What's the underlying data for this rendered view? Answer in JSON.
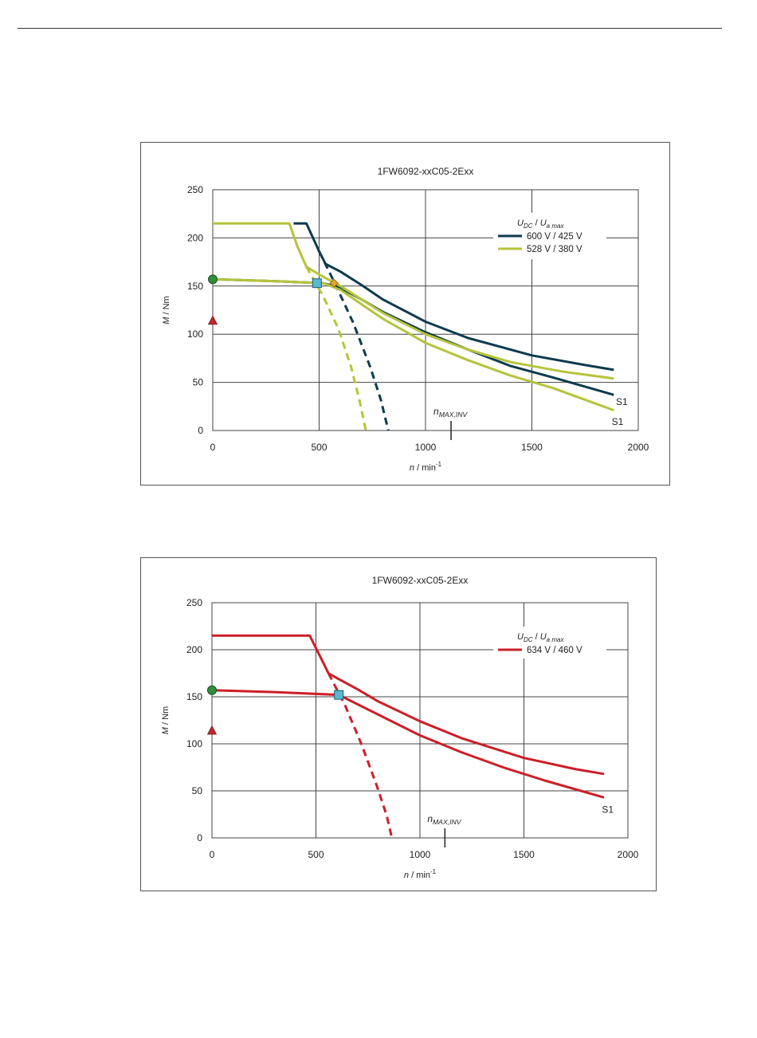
{
  "chart_data": [
    {
      "type": "line",
      "title": "1FW6092-xxC05-2Exx",
      "xlabel_var": "n",
      "xlabel_unit": " / min",
      "xlabel_sup": "-1",
      "ylabel_var": "M",
      "ylabel_unit": " / Nm",
      "xlim": [
        0,
        2000
      ],
      "ylim": [
        0,
        250
      ],
      "xticks": [
        0,
        500,
        1000,
        1500,
        2000
      ],
      "yticks": [
        0,
        50,
        100,
        150,
        200,
        250
      ],
      "grid": true,
      "legend_position": "top-right",
      "legend_header": "U_DC / U_a max",
      "nmax_label": "n_MAX,INV",
      "nmax_value": 1120,
      "series": [
        {
          "name": "600 V / 425 V",
          "color": "#0e3b4e",
          "dash": false,
          "points": [
            [
              380,
              215
            ],
            [
              440,
              215
            ],
            [
              500,
              186
            ],
            [
              530,
              173
            ],
            [
              600,
              165
            ],
            [
              700,
              151
            ],
            [
              800,
              136
            ],
            [
              1000,
              113
            ],
            [
              1200,
              96
            ],
            [
              1500,
              78
            ],
            [
              1750,
              68
            ],
            [
              1885,
              63
            ]
          ]
        },
        {
          "name": "",
          "color": "#0e3b4e",
          "dash": false,
          "points": [
            [
              0,
              157
            ],
            [
              300,
              155
            ],
            [
              520,
              153
            ],
            [
              600,
              148
            ],
            [
              700,
              136
            ],
            [
              800,
              123
            ],
            [
              1000,
              102
            ],
            [
              1200,
              84
            ],
            [
              1400,
              67
            ],
            [
              1600,
              55
            ],
            [
              1885,
              37
            ]
          ]
        },
        {
          "name": "",
          "color": "#0e3b4e",
          "dash": true,
          "points": [
            [
              500,
              186
            ],
            [
              580,
              150
            ],
            [
              660,
              112
            ],
            [
              740,
              66
            ],
            [
              790,
              32
            ],
            [
              825,
              0
            ]
          ]
        },
        {
          "name": "528 V / 380 V",
          "color": "#b5c43a",
          "dash": false,
          "points": [
            [
              0,
              215
            ],
            [
              360,
              215
            ],
            [
              400,
              190
            ],
            [
              440,
              170
            ],
            [
              500,
              162
            ],
            [
              600,
              150
            ],
            [
              700,
              136
            ],
            [
              800,
              122
            ],
            [
              1000,
              100
            ],
            [
              1200,
              84
            ],
            [
              1400,
              71
            ],
            [
              1650,
              61
            ],
            [
              1885,
              54
            ]
          ]
        },
        {
          "name": "",
          "color": "#b5c43a",
          "dash": false,
          "points": [
            [
              0,
              157
            ],
            [
              300,
              155
            ],
            [
              520,
              153
            ],
            [
              600,
              146
            ],
            [
              700,
              131
            ],
            [
              800,
              116
            ],
            [
              1000,
              91
            ],
            [
              1200,
              73
            ],
            [
              1400,
              57
            ],
            [
              1600,
              44
            ],
            [
              1885,
              21
            ]
          ]
        },
        {
          "name": "",
          "color": "#b5c43a",
          "dash": true,
          "points": [
            [
              440,
              170
            ],
            [
              520,
              139
            ],
            [
              590,
              106
            ],
            [
              650,
              66
            ],
            [
              690,
              31
            ],
            [
              720,
              0
            ]
          ]
        }
      ],
      "markers": [
        {
          "kind": "circle",
          "x": 0,
          "y": 157,
          "color": "#2f8f3a"
        },
        {
          "kind": "triangle",
          "x": 0,
          "y": 114,
          "color": "#c0272d"
        },
        {
          "kind": "square",
          "x": 490,
          "y": 153,
          "color": "#5bb6d4"
        },
        {
          "kind": "diamond",
          "x": 570,
          "y": 153,
          "color": "#e5a626"
        }
      ],
      "annotations": [
        {
          "text": "S1",
          "x": 1895,
          "y": 30
        },
        {
          "text": "S1",
          "x": 1875,
          "y": 9
        }
      ]
    },
    {
      "type": "line",
      "title": "1FW6092-xxC05-2Exx",
      "xlabel_var": "n",
      "xlabel_unit": " / min",
      "xlabel_sup": "-1",
      "ylabel_var": "M",
      "ylabel_unit": " / Nm",
      "xlim": [
        0,
        2000
      ],
      "ylim": [
        0,
        250
      ],
      "xticks": [
        0,
        500,
        1000,
        1500,
        2000
      ],
      "yticks": [
        0,
        50,
        100,
        150,
        200,
        250
      ],
      "grid": true,
      "legend_position": "top-right",
      "legend_header": "U_DC / U_a max",
      "nmax_label": "n_MAX,INV",
      "nmax_value": 1120,
      "series": [
        {
          "name": "634 V / 460 V",
          "color": "#cc1f28",
          "dash": false,
          "points": [
            [
              0,
              215
            ],
            [
              470,
              215
            ],
            [
              520,
              193
            ],
            [
              560,
              175
            ],
            [
              600,
              170
            ],
            [
              700,
              158
            ],
            [
              800,
              145
            ],
            [
              1000,
              124
            ],
            [
              1200,
              106
            ],
            [
              1500,
              85
            ],
            [
              1750,
              73
            ],
            [
              1885,
              68
            ]
          ]
        },
        {
          "name": "",
          "color": "#cc1f28",
          "dash": false,
          "points": [
            [
              0,
              157
            ],
            [
              300,
              155
            ],
            [
              610,
              152
            ],
            [
              700,
              142
            ],
            [
              800,
              131
            ],
            [
              1000,
              109
            ],
            [
              1200,
              91
            ],
            [
              1400,
              75
            ],
            [
              1600,
              61
            ],
            [
              1885,
              43
            ]
          ]
        },
        {
          "name": "",
          "color": "#cc1f28",
          "dash": true,
          "points": [
            [
              560,
              175
            ],
            [
              640,
              141
            ],
            [
              720,
              99
            ],
            [
              790,
              57
            ],
            [
              840,
              24
            ],
            [
              865,
              0
            ]
          ]
        }
      ],
      "markers": [
        {
          "kind": "circle",
          "x": 0,
          "y": 157,
          "color": "#2f8f3a"
        },
        {
          "kind": "triangle",
          "x": 0,
          "y": 114,
          "color": "#c0272d"
        },
        {
          "kind": "square",
          "x": 610,
          "y": 152,
          "color": "#5bb6d4"
        }
      ],
      "annotations": [
        {
          "text": "S1",
          "x": 1875,
          "y": 30
        }
      ]
    }
  ]
}
